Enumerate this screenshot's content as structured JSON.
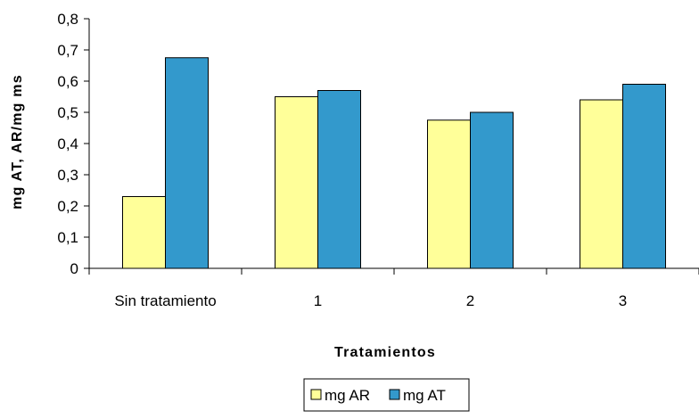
{
  "chart_data": {
    "type": "bar",
    "categories": [
      "Sin tratamiento",
      "1",
      "2",
      "3"
    ],
    "series": [
      {
        "name": "mg AR",
        "values": [
          0.23,
          0.55,
          0.475,
          0.54
        ],
        "color": "#ffff99"
      },
      {
        "name": "mg AT",
        "values": [
          0.675,
          0.57,
          0.5,
          0.59
        ],
        "color": "#3399cc"
      }
    ],
    "xlabel": "Tratamientos",
    "ylabel": "mg AT, AR/mg ms",
    "ylim": [
      0,
      0.8
    ],
    "yticks": [
      "0",
      "0,1",
      "0,2",
      "0,3",
      "0,4",
      "0,5",
      "0,6",
      "0,7",
      "0,8"
    ],
    "grid": false,
    "legend_position": "bottom-center"
  }
}
